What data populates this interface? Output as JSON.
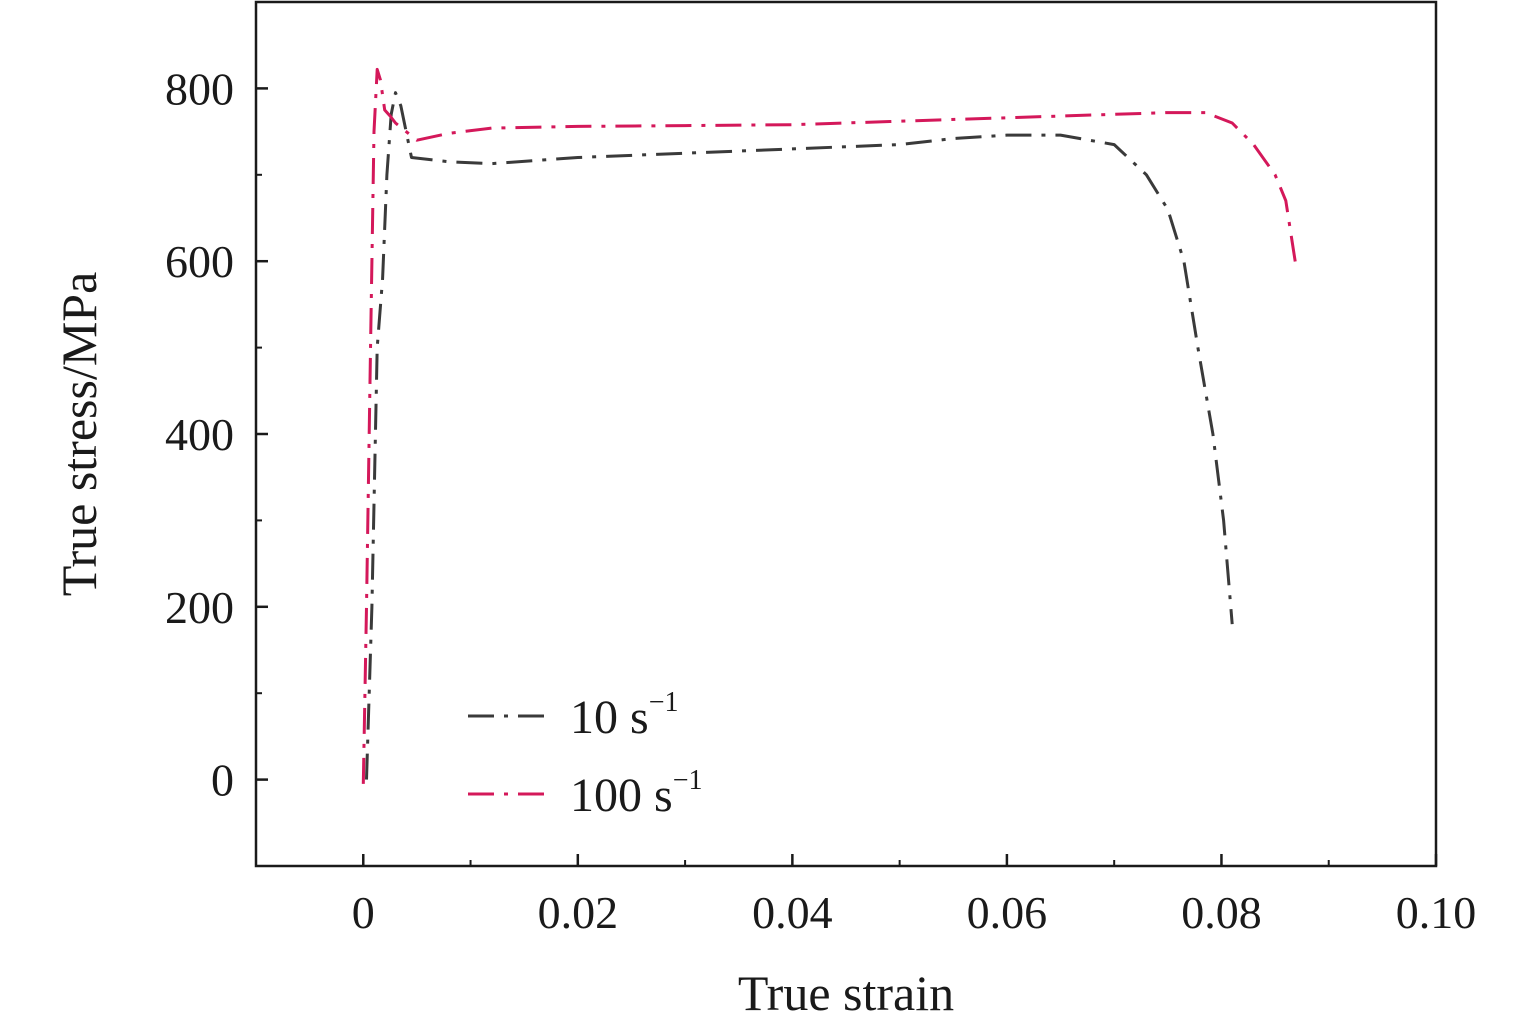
{
  "chart_data": {
    "type": "line",
    "xlabel": "True strain",
    "ylabel": "True stress/MPa",
    "xlim": [
      -0.01,
      0.1
    ],
    "ylim": [
      -100,
      900
    ],
    "x_ticks": [
      0,
      0.02,
      0.04,
      0.06,
      0.08,
      0.1
    ],
    "x_tick_labels": [
      "0",
      "0.02",
      "0.04",
      "0.06",
      "0.08",
      "0.10"
    ],
    "y_ticks": [
      0,
      200,
      400,
      600,
      800
    ],
    "y_tick_labels": [
      "0",
      "200",
      "400",
      "600",
      "800"
    ],
    "grid": false,
    "legend_position": "bottom-left",
    "series": [
      {
        "name": "10 s",
        "name_sup": "−1",
        "color": "#3a3a3a",
        "dash": "dash-dot",
        "points": [
          [
            0.0003,
            0
          ],
          [
            0.0008,
            200
          ],
          [
            0.0013,
            500
          ],
          [
            0.0018,
            580
          ],
          [
            0.0022,
            700
          ],
          [
            0.0026,
            770
          ],
          [
            0.003,
            795
          ],
          [
            0.0035,
            780
          ],
          [
            0.0045,
            720
          ],
          [
            0.008,
            715
          ],
          [
            0.012,
            713
          ],
          [
            0.02,
            720
          ],
          [
            0.03,
            725
          ],
          [
            0.04,
            730
          ],
          [
            0.05,
            735
          ],
          [
            0.055,
            742
          ],
          [
            0.06,
            746
          ],
          [
            0.065,
            746
          ],
          [
            0.07,
            735
          ],
          [
            0.073,
            700
          ],
          [
            0.075,
            660
          ],
          [
            0.0765,
            600
          ],
          [
            0.0778,
            500
          ],
          [
            0.0792,
            400
          ],
          [
            0.0802,
            300
          ],
          [
            0.081,
            180
          ]
        ]
      },
      {
        "name": "100 s",
        "name_sup": "−1",
        "color": "#d4185a",
        "dash": "dash-dot",
        "points": [
          [
            0.0,
            -5
          ],
          [
            0.0003,
            200
          ],
          [
            0.0007,
            520
          ],
          [
            0.001,
            750
          ],
          [
            0.0013,
            822
          ],
          [
            0.0016,
            810
          ],
          [
            0.002,
            775
          ],
          [
            0.0025,
            768
          ],
          [
            0.003,
            760
          ],
          [
            0.005,
            740
          ],
          [
            0.008,
            748
          ],
          [
            0.012,
            754
          ],
          [
            0.02,
            756
          ],
          [
            0.03,
            757
          ],
          [
            0.04,
            758
          ],
          [
            0.05,
            762
          ],
          [
            0.06,
            766
          ],
          [
            0.07,
            770
          ],
          [
            0.075,
            772
          ],
          [
            0.0785,
            772
          ],
          [
            0.081,
            760
          ],
          [
            0.083,
            735
          ],
          [
            0.085,
            700
          ],
          [
            0.086,
            670
          ],
          [
            0.087,
            590
          ]
        ]
      }
    ]
  }
}
